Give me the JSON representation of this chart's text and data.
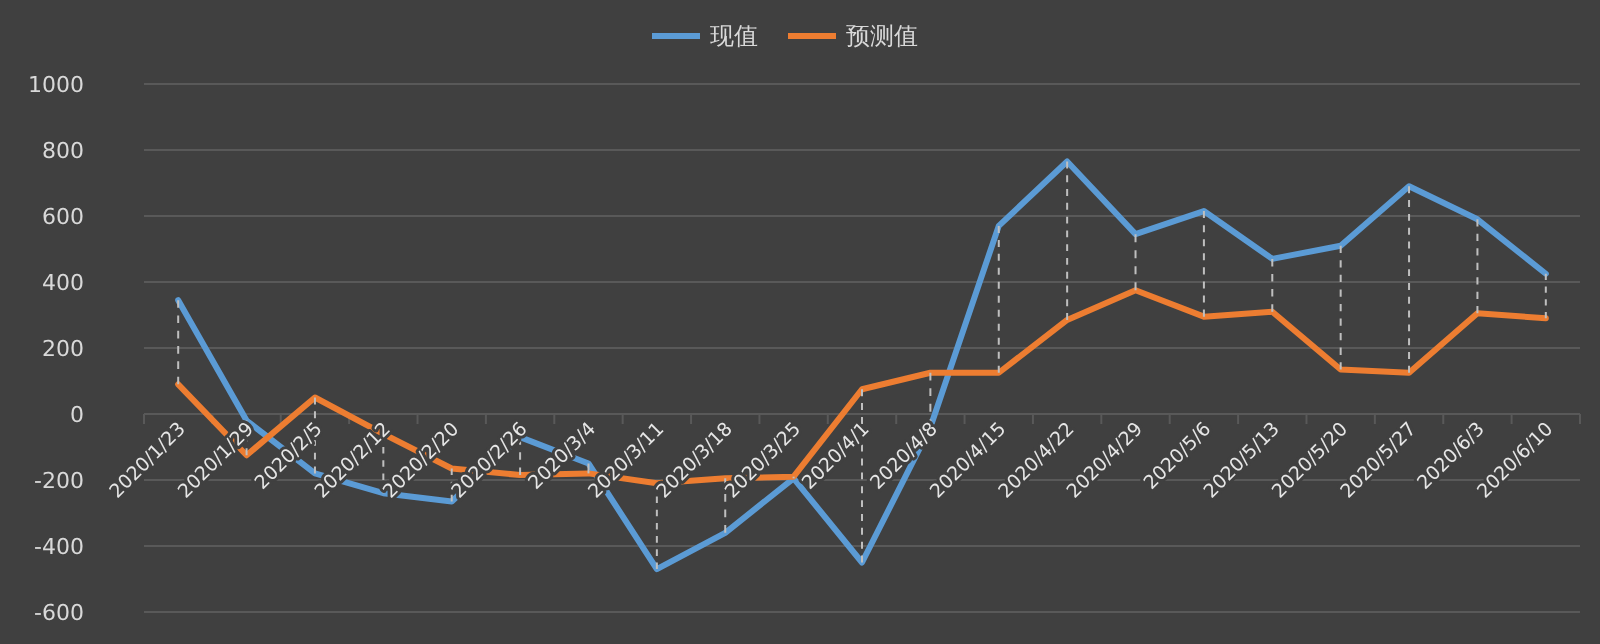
{
  "chart_data": {
    "type": "line",
    "categories": [
      "2020/1/23",
      "2020/1/29",
      "2020/2/5",
      "2020/2/12",
      "2020/2/20",
      "2020/2/26",
      "2020/3/4",
      "2020/3/11",
      "2020/3/18",
      "2020/3/25",
      "2020/4/1",
      "2020/4/8",
      "2020/4/15",
      "2020/4/22",
      "2020/4/29",
      "2020/5/6",
      "2020/5/13",
      "2020/5/20",
      "2020/5/27",
      "2020/6/3",
      "2020/6/10"
    ],
    "series": [
      {
        "name": "现值",
        "color": "#5b9bd5",
        "values": [
          345,
          -20,
          -180,
          -240,
          -265,
          -70,
          -150,
          -470,
          -360,
          -195,
          -450,
          -40,
          570,
          765,
          545,
          615,
          470,
          510,
          690,
          590,
          425
        ],
        "errors": [
          [
            90,
            345
          ],
          [
            -125,
            -20
          ],
          [
            -180,
            50
          ],
          [
            -240,
            -60
          ],
          [
            -265,
            -165
          ],
          [
            -185,
            -70
          ],
          [
            -180,
            -150
          ],
          [
            -470,
            -210
          ],
          [
            -360,
            -195
          ],
          [
            -195,
            -190
          ],
          [
            -450,
            75
          ],
          [
            -40,
            125
          ],
          [
            125,
            570
          ],
          [
            285,
            765
          ],
          [
            375,
            545
          ],
          [
            295,
            615
          ],
          [
            310,
            470
          ],
          [
            135,
            510
          ],
          [
            125,
            690
          ],
          [
            305,
            590
          ],
          [
            290,
            425
          ]
        ]
      },
      {
        "name": "预测值",
        "color": "#ed7d31",
        "values": [
          90,
          -125,
          50,
          -60,
          -165,
          -185,
          -180,
          -210,
          -195,
          -190,
          75,
          125,
          125,
          285,
          375,
          295,
          310,
          135,
          125,
          305,
          290
        ]
      }
    ],
    "ylim": [
      -600,
      1000
    ],
    "yticks": [
      -600,
      -400,
      -200,
      0,
      200,
      400,
      600,
      800,
      1000
    ],
    "grid": "y",
    "legend": "top",
    "marker": "none",
    "line_style": "solid"
  }
}
